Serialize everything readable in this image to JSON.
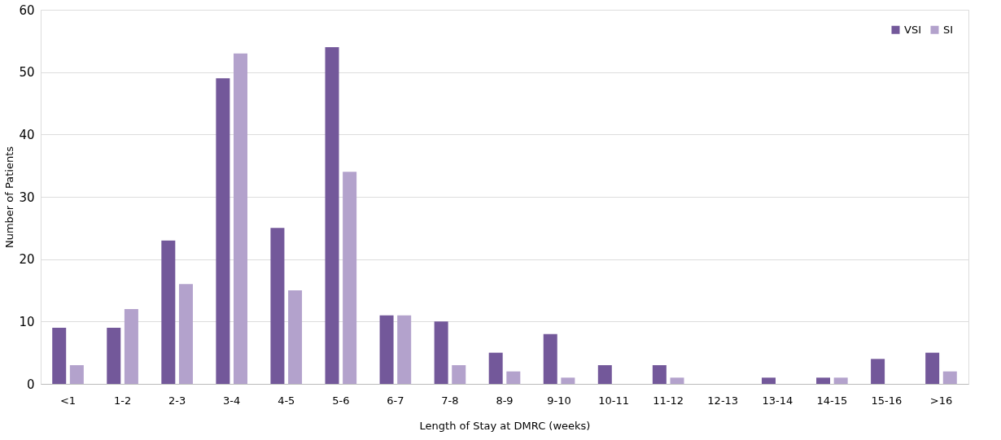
{
  "chart_data": {
    "type": "bar",
    "xlabel": "Length of Stay at DMRC (weeks)",
    "ylabel": "Number of Patients",
    "categories": [
      "<1",
      "1-2",
      "2-3",
      "3-4",
      "4-5",
      "5-6",
      "6-7",
      "7-8",
      "8-9",
      "9-10",
      "10-11",
      "11-12",
      "12-13",
      "13-14",
      "14-15",
      "15-16",
      ">16"
    ],
    "series": [
      {
        "name": "VSI",
        "color": "#73589a",
        "values": [
          9,
          9,
          23,
          49,
          25,
          54,
          11,
          10,
          5,
          8,
          3,
          3,
          0,
          1,
          1,
          4,
          5
        ]
      },
      {
        "name": "SI",
        "color": "#b3a2cc",
        "values": [
          3,
          12,
          16,
          53,
          15,
          34,
          11,
          3,
          2,
          1,
          0,
          1,
          0,
          0,
          1,
          0,
          2
        ]
      }
    ],
    "ylim": [
      0,
      60
    ],
    "yticks": [
      0,
      10,
      20,
      30,
      40,
      50,
      60
    ],
    "grid": "y",
    "legend": "top right"
  }
}
